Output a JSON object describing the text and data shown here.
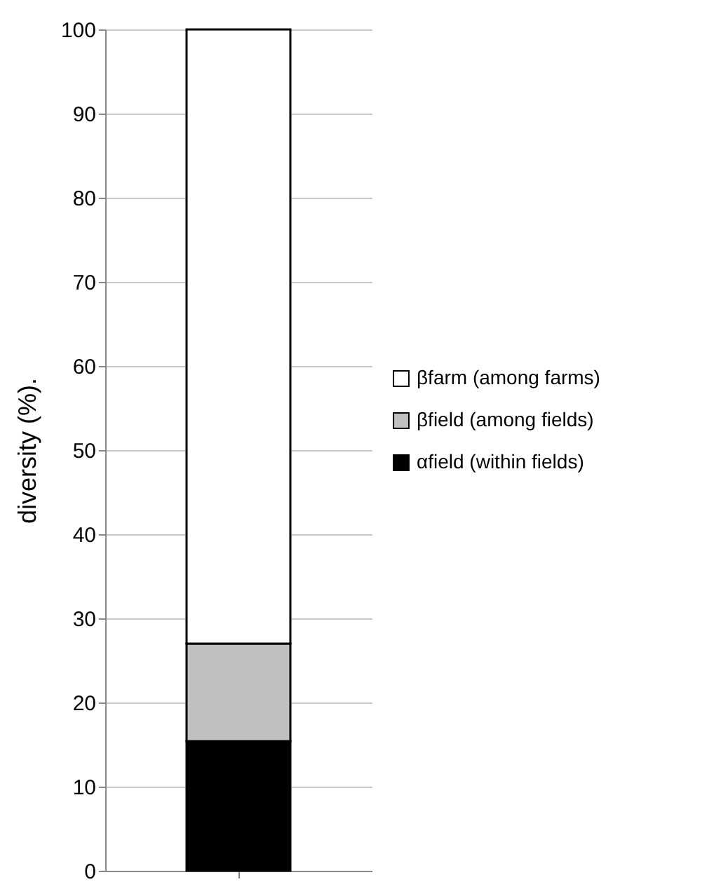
{
  "chart_data": {
    "type": "bar",
    "stacked": true,
    "ylabel": "diversity (%).",
    "categories": [
      null
    ],
    "series": [
      {
        "name": "αfield (within fields)",
        "color": "#000000",
        "values": [
          15.4
        ]
      },
      {
        "name": "βfield (among fields)",
        "color": "#c0c0c0",
        "values": [
          11.6
        ]
      },
      {
        "name": "βfarm (among farms)",
        "color": "#ffffff",
        "values": [
          73
        ]
      }
    ],
    "ylim": [
      0,
      100
    ],
    "yticks": [
      0,
      10,
      20,
      30,
      40,
      50,
      60,
      70,
      80,
      90,
      100
    ],
    "grid": "y",
    "legend": "right"
  }
}
